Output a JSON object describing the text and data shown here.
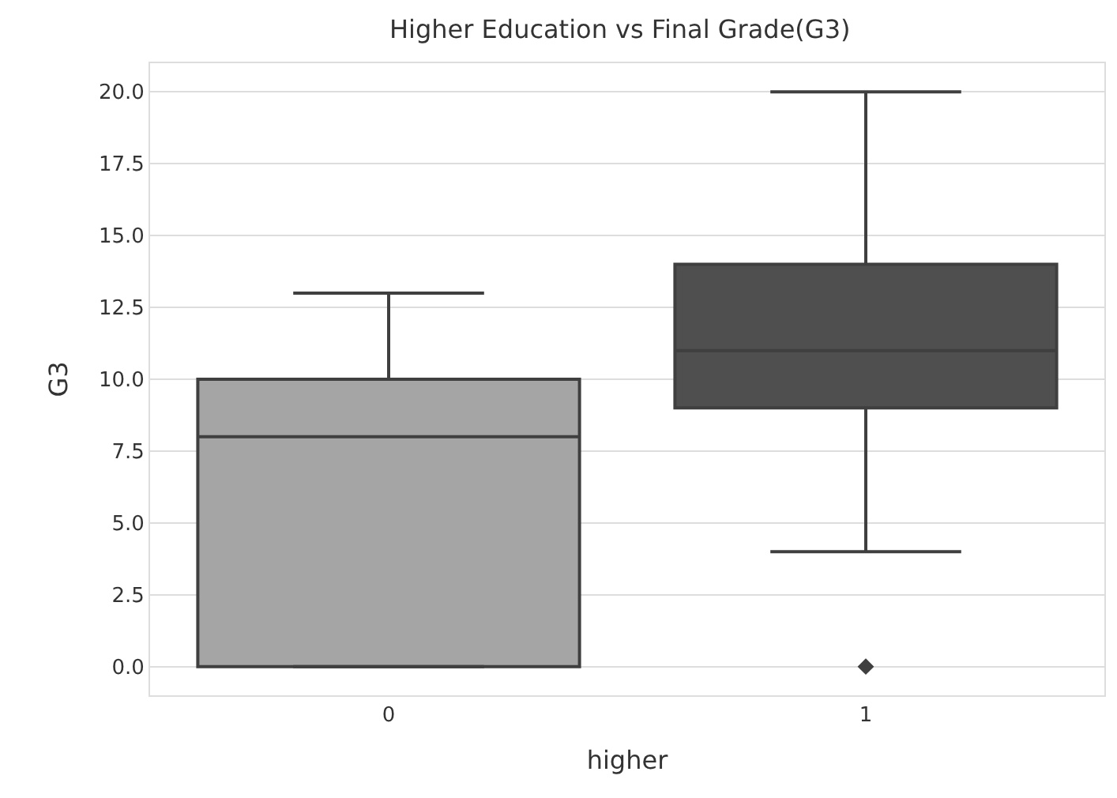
{
  "chart_data": {
    "type": "box",
    "title": "Higher Education vs Final Grade(G3)",
    "xlabel": "higher",
    "ylabel": "G3",
    "categories": [
      "0",
      "1"
    ],
    "colors": [
      "#a5a5a5",
      "#4f4f4f"
    ],
    "boxes": [
      {
        "low": 0,
        "q1": 0,
        "median": 8,
        "q3": 10,
        "high": 13
      },
      {
        "low": 4,
        "q1": 9,
        "median": 11,
        "q3": 14,
        "high": 20,
        "outliers": [
          0
        ]
      }
    ],
    "ylim": [
      -1,
      21
    ],
    "yticks": [
      {
        "value": 0,
        "label": "0.0"
      },
      {
        "value": 2.5,
        "label": "2.5"
      },
      {
        "value": 5,
        "label": "5.0"
      },
      {
        "value": 7.5,
        "label": "7.5"
      },
      {
        "value": 10,
        "label": "10.0"
      },
      {
        "value": 12.5,
        "label": "12.5"
      },
      {
        "value": 15,
        "label": "15.0"
      },
      {
        "value": 17.5,
        "label": "17.5"
      },
      {
        "value": 20,
        "label": "20.0"
      }
    ],
    "grid": "y"
  }
}
